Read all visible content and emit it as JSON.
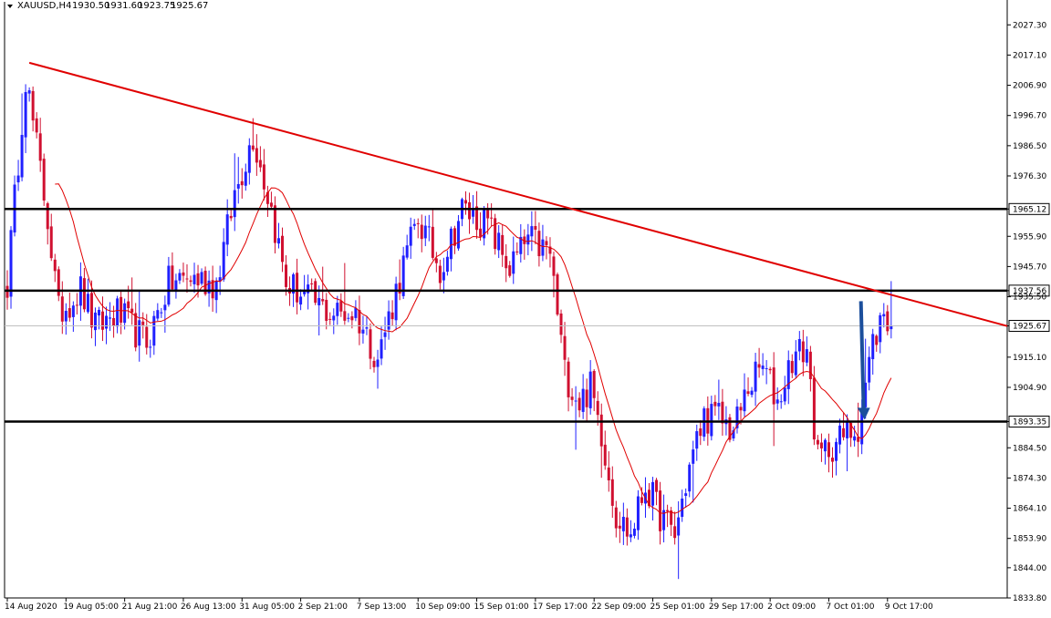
{
  "header": {
    "symbol": "XAUUSD,H4",
    "open": "1930.50",
    "high": "1931.60",
    "low": "1923.75",
    "close": "1925.67"
  },
  "colors": {
    "bull": "#2020ff",
    "bear": "#d01030",
    "ma": "#e00000",
    "trendline": "#e00000",
    "level": "#000000",
    "arrow": "#1c4f9c",
    "current_price_line": "#c0c0c0"
  },
  "chart_data": {
    "type": "candlestick",
    "symbol": "XAUUSD",
    "timeframe": "H4",
    "ylim": [
      1833.8,
      2032.0
    ],
    "y_ticks": [
      "2027.30",
      "2017.10",
      "2006.90",
      "1996.70",
      "1986.50",
      "1976.30",
      "1965.12",
      "1955.90",
      "1945.70",
      "1937.56",
      "1935.50",
      "1925.67",
      "1915.10",
      "1904.90",
      "1893.35",
      "1884.50",
      "1874.30",
      "1864.10",
      "1853.90",
      "1844.00",
      "1833.80"
    ],
    "x_ticks": [
      "14 Aug 2020",
      "19 Aug 05:00",
      "21 Aug 21:00",
      "26 Aug 13:00",
      "31 Aug 05:00",
      "2 Sep 21:00",
      "7 Sep 13:00",
      "10 Sep 09:00",
      "15 Sep 01:00",
      "17 Sep 17:00",
      "22 Sep 09:00",
      "25 Sep 01:00",
      "29 Sep 17:00",
      "2 Oct 09:00",
      "7 Oct 01:00",
      "9 Oct 17:00"
    ],
    "horizontal_levels": [
      {
        "value": 1965.12,
        "label": "1965.12"
      },
      {
        "value": 1937.56,
        "label": "1937.56"
      },
      {
        "value": 1893.35,
        "label": "1893.35"
      }
    ],
    "current_price": {
      "value": 1925.67,
      "label": "1925.67"
    },
    "trendline": {
      "start": {
        "bar": 6,
        "price": 2014.5
      },
      "end": {
        "bar": 250,
        "price": 1925.6
      }
    },
    "arrow": {
      "bar": 233,
      "from_price": 1934.0,
      "to_price": 1894.0,
      "direction": "down"
    },
    "ma_period": 14,
    "anchors": [
      {
        "i": 0,
        "p": 1940
      },
      {
        "i": 5,
        "p": 2010
      },
      {
        "i": 11,
        "p": 1962
      },
      {
        "i": 14,
        "p": 1930
      },
      {
        "i": 20,
        "p": 1938
      },
      {
        "i": 24,
        "p": 1925
      },
      {
        "i": 30,
        "p": 1930
      },
      {
        "i": 38,
        "p": 1920
      },
      {
        "i": 44,
        "p": 1940
      },
      {
        "i": 50,
        "p": 1942
      },
      {
        "i": 57,
        "p": 1940
      },
      {
        "i": 62,
        "p": 1970
      },
      {
        "i": 67,
        "p": 1990
      },
      {
        "i": 72,
        "p": 1965
      },
      {
        "i": 76,
        "p": 1940
      },
      {
        "i": 82,
        "p": 1935
      },
      {
        "i": 88,
        "p": 1930
      },
      {
        "i": 95,
        "p": 1930
      },
      {
        "i": 101,
        "p": 1915
      },
      {
        "i": 107,
        "p": 1942
      },
      {
        "i": 112,
        "p": 1962
      },
      {
        "i": 118,
        "p": 1945
      },
      {
        "i": 124,
        "p": 1965
      },
      {
        "i": 131,
        "p": 1960
      },
      {
        "i": 137,
        "p": 1945
      },
      {
        "i": 142,
        "p": 1955
      },
      {
        "i": 148,
        "p": 1950
      },
      {
        "i": 152,
        "p": 1910
      },
      {
        "i": 156,
        "p": 1900
      },
      {
        "i": 159,
        "p": 1905
      },
      {
        "i": 162,
        "p": 1890
      },
      {
        "i": 166,
        "p": 1862
      },
      {
        "i": 170,
        "p": 1855
      },
      {
        "i": 174,
        "p": 1872
      },
      {
        "i": 178,
        "p": 1862
      },
      {
        "i": 182,
        "p": 1855
      },
      {
        "i": 186,
        "p": 1878
      },
      {
        "i": 190,
        "p": 1895
      },
      {
        "i": 194,
        "p": 1895
      },
      {
        "i": 198,
        "p": 1890
      },
      {
        "i": 202,
        "p": 1905
      },
      {
        "i": 206,
        "p": 1912
      },
      {
        "i": 210,
        "p": 1900
      },
      {
        "i": 214,
        "p": 1915
      },
      {
        "i": 218,
        "p": 1918
      },
      {
        "i": 221,
        "p": 1880
      },
      {
        "i": 224,
        "p": 1885
      },
      {
        "i": 228,
        "p": 1888
      },
      {
        "i": 232,
        "p": 1892
      },
      {
        "i": 236,
        "p": 1920
      },
      {
        "i": 239,
        "p": 1930
      },
      {
        "i": 241,
        "p": 1925.7
      }
    ],
    "bar_count": 242
  }
}
